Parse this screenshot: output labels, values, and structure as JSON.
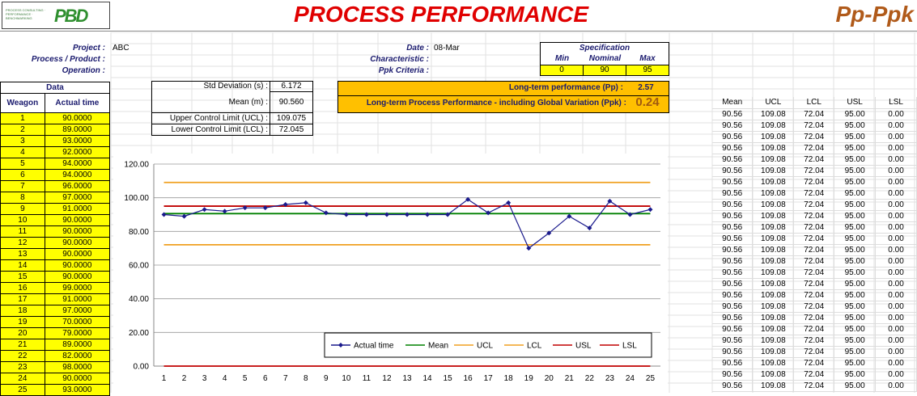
{
  "header": {
    "logo_text": "PROCESS CONSULTING · PERFORMANCE · BENCHMARKING",
    "logo_mark": "PBD",
    "title": "PROCESS PERFORMANCE",
    "subtitle": "Pp-Ppk"
  },
  "info": {
    "project_label": "Project :",
    "project_value": "ABC",
    "process_label": "Process / Product :",
    "process_value": "",
    "operation_label": "Operation :",
    "operation_value": "",
    "date_label": "Date :",
    "date_value": "08-Mar",
    "characteristic_label": "Characteristic :",
    "characteristic_value": "",
    "ppk_criteria_label": "Ppk Criteria :",
    "ppk_criteria_value": ""
  },
  "specification": {
    "title": "Specification",
    "min_label": "Min",
    "nominal_label": "Nominal",
    "max_label": "Max",
    "min": "0",
    "nominal": "90",
    "max": "95"
  },
  "stats": {
    "std_label": "Std Deviation (s) :",
    "std_value": "6.172",
    "mean_label": "Mean (m) :",
    "mean_value": "90.560",
    "ucl_label": "Upper Control Limit (UCL) :",
    "ucl_value": "109.075",
    "lcl_label": "Lower Control Limit (LCL) :",
    "lcl_value": "72.045"
  },
  "performance": {
    "pp_label": "Long-term performance (Pp) :",
    "pp_value": "2.57",
    "ppk_label": "Long-term Process Performance - including Global Variation (Ppk) :",
    "ppk_value": "0.24"
  },
  "data_table": {
    "title": "Data",
    "col_weagon": "Weagon",
    "col_actual": "Actual time",
    "rows": [
      [
        "1",
        "90.0000"
      ],
      [
        "2",
        "89.0000"
      ],
      [
        "3",
        "93.0000"
      ],
      [
        "4",
        "92.0000"
      ],
      [
        "5",
        "94.0000"
      ],
      [
        "6",
        "94.0000"
      ],
      [
        "7",
        "96.0000"
      ],
      [
        "8",
        "97.0000"
      ],
      [
        "9",
        "91.0000"
      ],
      [
        "10",
        "90.0000"
      ],
      [
        "11",
        "90.0000"
      ],
      [
        "12",
        "90.0000"
      ],
      [
        "13",
        "90.0000"
      ],
      [
        "14",
        "90.0000"
      ],
      [
        "15",
        "90.0000"
      ],
      [
        "16",
        "99.0000"
      ],
      [
        "17",
        "91.0000"
      ],
      [
        "18",
        "97.0000"
      ],
      [
        "19",
        "70.0000"
      ],
      [
        "20",
        "79.0000"
      ],
      [
        "21",
        "89.0000"
      ],
      [
        "22",
        "82.0000"
      ],
      [
        "23",
        "98.0000"
      ],
      [
        "24",
        "90.0000"
      ],
      [
        "25",
        "93.0000"
      ]
    ]
  },
  "right_table": {
    "headers": [
      "Mean",
      "UCL",
      "LCL",
      "USL",
      "LSL"
    ],
    "row": [
      "90.56",
      "109.08",
      "72.04",
      "95.00",
      "0.00"
    ],
    "row_count": 25
  },
  "chart_data": {
    "type": "line",
    "x": [
      1,
      2,
      3,
      4,
      5,
      6,
      7,
      8,
      9,
      10,
      11,
      12,
      13,
      14,
      15,
      16,
      17,
      18,
      19,
      20,
      21,
      22,
      23,
      24,
      25
    ],
    "ylim": [
      0,
      120
    ],
    "yticks": [
      "0.00",
      "20.00",
      "40.00",
      "60.00",
      "80.00",
      "100.00",
      "120.00"
    ],
    "grid": "horizontal",
    "legend_position": "bottom-right",
    "series": [
      {
        "name": "Actual time",
        "color": "#1a1a8c",
        "marker": "diamond",
        "values": [
          90,
          89,
          93,
          92,
          94,
          94,
          96,
          97,
          91,
          90,
          90,
          90,
          90,
          90,
          90,
          99,
          91,
          97,
          70,
          79,
          89,
          82,
          98,
          90,
          93
        ]
      },
      {
        "name": "Mean",
        "color": "#008000",
        "constant": 90.56
      },
      {
        "name": "UCL",
        "color": "#f0a020",
        "constant": 109.075
      },
      {
        "name": "LCL",
        "color": "#f0a020",
        "constant": 72.045
      },
      {
        "name": "USL",
        "color": "#c00000",
        "constant": 95
      },
      {
        "name": "LSL",
        "color": "#c00000",
        "constant": 0
      }
    ]
  }
}
